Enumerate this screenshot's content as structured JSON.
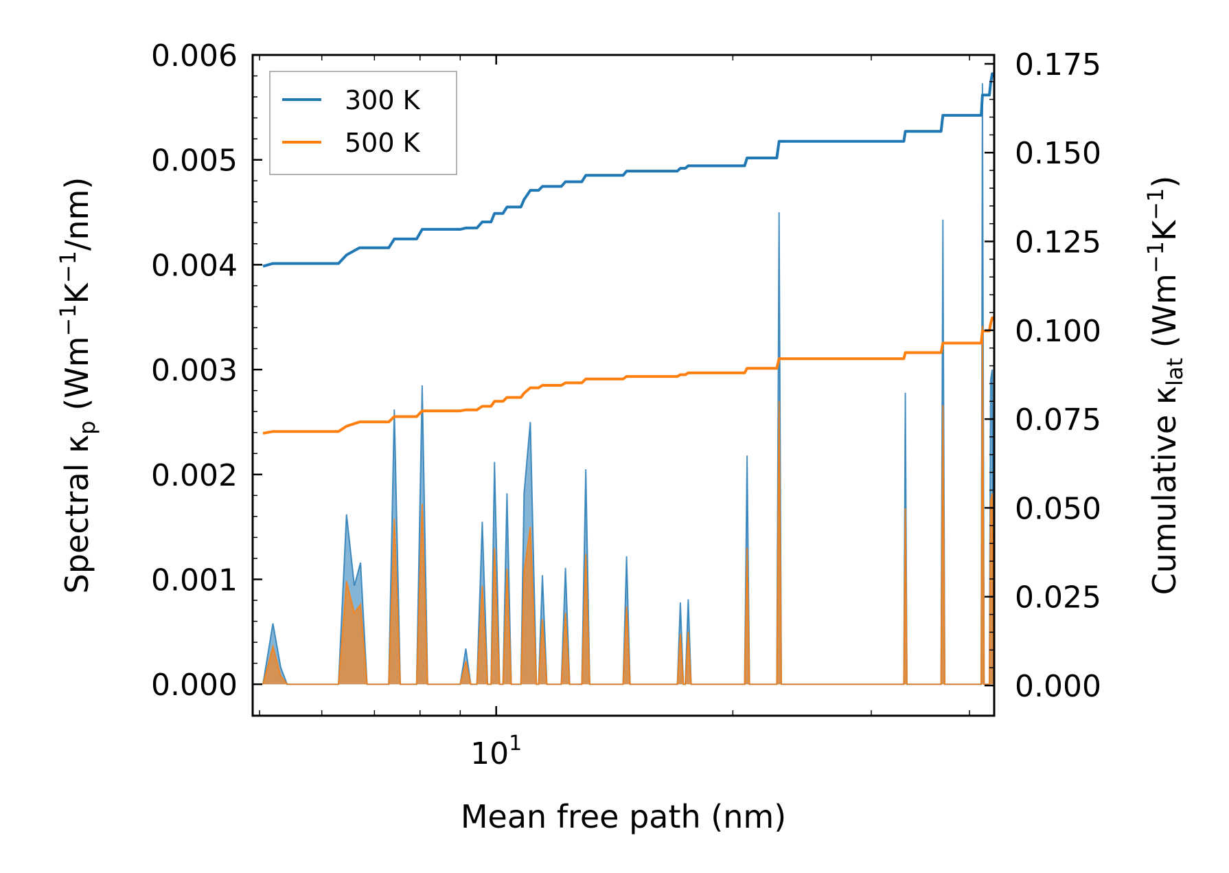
{
  "chart_data": {
    "type": "line+area",
    "title": "",
    "x_scale": "log",
    "xlim": [
      4.9,
      43.0
    ],
    "xlabel": "Mean free path (nm)",
    "x_major_ticks": [
      {
        "value": 10,
        "base": "10",
        "exp": "1"
      }
    ],
    "x_minor_ticks": [
      5,
      6,
      7,
      8,
      9,
      20,
      30,
      40
    ],
    "ylabel_left": {
      "pre": "Spectral κ",
      "sub": "p",
      "mid": " (Wm",
      "sup1": "−1",
      "k": "K",
      "sup2": "−1",
      "post": "/nm)"
    },
    "ylabel_right": {
      "pre": "Cumulative κ",
      "sub": "lat",
      "mid": " (Wm",
      "sup1": "−1",
      "k": "K",
      "sup2": "−1",
      "post": ")"
    },
    "ylim_left": [
      -0.0003,
      0.006
    ],
    "ylim_right": [
      -0.0085,
      0.1775
    ],
    "yticks_left": [
      "0.000",
      "0.001",
      "0.002",
      "0.003",
      "0.004",
      "0.005",
      "0.006"
    ],
    "yticks_right": [
      "0.000",
      "0.025",
      "0.050",
      "0.075",
      "0.100",
      "0.125",
      "0.150",
      "0.175"
    ],
    "legend": {
      "position": "top-left",
      "entries": [
        {
          "label": "300 K",
          "color": "#1f77b4"
        },
        {
          "label": "500 K",
          "color": "#ff7f0e"
        }
      ]
    },
    "colors": {
      "300K": "#1f77b4",
      "500K": "#ff7f0e",
      "fill300": "#1f77b4",
      "fill500": "#ff7f0e"
    },
    "spectral_series": [
      {
        "name": "300 K",
        "points": [
          [
            5.05,
            0
          ],
          [
            5.2,
            0.00058
          ],
          [
            5.32,
            0.00016
          ],
          [
            5.42,
            0
          ],
          [
            6.3,
            0
          ],
          [
            6.45,
            0.00162
          ],
          [
            6.6,
            0.00094
          ],
          [
            6.72,
            0.00116
          ],
          [
            6.85,
            0
          ],
          [
            7.3,
            0
          ],
          [
            7.42,
            0.00262
          ],
          [
            7.55,
            0
          ],
          [
            7.92,
            0
          ],
          [
            8.05,
            0.00285
          ],
          [
            8.18,
            0
          ],
          [
            9.0,
            0
          ],
          [
            9.15,
            0.00034
          ],
          [
            9.28,
            0
          ],
          [
            9.45,
            0
          ],
          [
            9.6,
            0.00155
          ],
          [
            9.75,
            0
          ],
          [
            9.85,
            0
          ],
          [
            9.95,
            0.00212
          ],
          [
            10.1,
            0
          ],
          [
            10.2,
            0
          ],
          [
            10.32,
            0.00182
          ],
          [
            10.45,
            0
          ],
          [
            10.75,
            0
          ],
          [
            10.85,
            0.00182
          ],
          [
            11.05,
            0.0025
          ],
          [
            11.25,
            0
          ],
          [
            11.32,
            0
          ],
          [
            11.45,
            0.00104
          ],
          [
            11.6,
            0
          ],
          [
            12.1,
            0
          ],
          [
            12.25,
            0.00111
          ],
          [
            12.4,
            0
          ],
          [
            12.85,
            0
          ],
          [
            13.0,
            0.00205
          ],
          [
            13.15,
            0
          ],
          [
            14.5,
            0
          ],
          [
            14.65,
            0.00122
          ],
          [
            14.8,
            0
          ],
          [
            17.0,
            0
          ],
          [
            17.15,
            0.00078
          ],
          [
            17.3,
            0
          ],
          [
            17.4,
            0
          ],
          [
            17.55,
            0.00081
          ],
          [
            17.7,
            0
          ],
          [
            20.7,
            0
          ],
          [
            20.85,
            0.00218
          ],
          [
            21.0,
            0
          ],
          [
            22.75,
            0
          ],
          [
            22.9,
            0.0045
          ],
          [
            23.05,
            0
          ],
          [
            33.0,
            0
          ],
          [
            33.15,
            0.00278
          ],
          [
            33.3,
            0
          ],
          [
            36.8,
            0
          ],
          [
            37.0,
            0.00443
          ],
          [
            37.2,
            0
          ],
          [
            41.4,
            0
          ],
          [
            41.55,
            0.00573
          ],
          [
            41.75,
            0
          ],
          [
            42.4,
            0
          ],
          [
            42.55,
            0.0029
          ],
          [
            42.75,
            0.003
          ],
          [
            42.95,
            0
          ]
        ]
      },
      {
        "name": "500 K",
        "points": [
          [
            5.05,
            0
          ],
          [
            5.2,
            0.00036
          ],
          [
            5.32,
            8e-05
          ],
          [
            5.42,
            0
          ],
          [
            6.3,
            0
          ],
          [
            6.45,
            0.00098
          ],
          [
            6.6,
            0.00068
          ],
          [
            6.72,
            0.00076
          ],
          [
            6.85,
            0
          ],
          [
            7.3,
            0
          ],
          [
            7.42,
            0.00158
          ],
          [
            7.55,
            0
          ],
          [
            7.92,
            0
          ],
          [
            8.05,
            0.00172
          ],
          [
            8.18,
            0
          ],
          [
            9.0,
            0
          ],
          [
            9.15,
            0.00022
          ],
          [
            9.28,
            0
          ],
          [
            9.45,
            0
          ],
          [
            9.6,
            0.00094
          ],
          [
            9.75,
            0
          ],
          [
            9.85,
            0
          ],
          [
            9.95,
            0.0013
          ],
          [
            10.1,
            0
          ],
          [
            10.2,
            0
          ],
          [
            10.32,
            0.0011
          ],
          [
            10.45,
            0
          ],
          [
            10.75,
            0
          ],
          [
            10.85,
            0.00108
          ],
          [
            11.05,
            0.0015
          ],
          [
            11.25,
            0
          ],
          [
            11.32,
            0
          ],
          [
            11.45,
            0.00062
          ],
          [
            11.6,
            0
          ],
          [
            12.1,
            0
          ],
          [
            12.25,
            0.00068
          ],
          [
            12.4,
            0
          ],
          [
            12.85,
            0
          ],
          [
            13.0,
            0.00124
          ],
          [
            13.15,
            0
          ],
          [
            14.5,
            0
          ],
          [
            14.65,
            0.00074
          ],
          [
            14.8,
            0
          ],
          [
            17.0,
            0
          ],
          [
            17.15,
            0.00048
          ],
          [
            17.3,
            0
          ],
          [
            17.4,
            0
          ],
          [
            17.55,
            0.0005
          ],
          [
            17.7,
            0
          ],
          [
            20.7,
            0
          ],
          [
            20.85,
            0.0013
          ],
          [
            21.0,
            0
          ],
          [
            22.75,
            0
          ],
          [
            22.9,
            0.0027
          ],
          [
            23.05,
            0
          ],
          [
            33.0,
            0
          ],
          [
            33.15,
            0.00168
          ],
          [
            33.3,
            0
          ],
          [
            36.8,
            0
          ],
          [
            37.0,
            0.00266
          ],
          [
            37.2,
            0
          ],
          [
            41.4,
            0
          ],
          [
            41.55,
            0.00342
          ],
          [
            41.75,
            0
          ],
          [
            42.4,
            0
          ],
          [
            42.55,
            0.00175
          ],
          [
            42.75,
            0.00182
          ],
          [
            42.95,
            0
          ]
        ]
      }
    ],
    "cumulative_series": [
      {
        "name": "300 K",
        "points": [
          [
            5.05,
            0.118
          ],
          [
            5.2,
            0.1188
          ],
          [
            6.3,
            0.1188
          ],
          [
            6.45,
            0.1212
          ],
          [
            6.7,
            0.1232
          ],
          [
            7.3,
            0.1232
          ],
          [
            7.42,
            0.1257
          ],
          [
            7.92,
            0.1257
          ],
          [
            8.05,
            0.1284
          ],
          [
            9.0,
            0.1284
          ],
          [
            9.15,
            0.1288
          ],
          [
            9.45,
            0.1288
          ],
          [
            9.6,
            0.1305
          ],
          [
            9.85,
            0.1305
          ],
          [
            9.95,
            0.1329
          ],
          [
            10.2,
            0.1329
          ],
          [
            10.32,
            0.1347
          ],
          [
            10.75,
            0.1347
          ],
          [
            10.85,
            0.1368
          ],
          [
            11.05,
            0.1394
          ],
          [
            11.32,
            0.1394
          ],
          [
            11.45,
            0.1405
          ],
          [
            12.1,
            0.1405
          ],
          [
            12.25,
            0.1418
          ],
          [
            12.85,
            0.1418
          ],
          [
            13.0,
            0.1436
          ],
          [
            14.5,
            0.1436
          ],
          [
            14.65,
            0.1448
          ],
          [
            17.0,
            0.1448
          ],
          [
            17.15,
            0.1456
          ],
          [
            17.4,
            0.1456
          ],
          [
            17.55,
            0.1463
          ],
          [
            20.7,
            0.1463
          ],
          [
            20.85,
            0.1485
          ],
          [
            22.75,
            0.1485
          ],
          [
            22.9,
            0.1532
          ],
          [
            33.0,
            0.1532
          ],
          [
            33.15,
            0.156
          ],
          [
            36.8,
            0.156
          ],
          [
            37.0,
            0.1605
          ],
          [
            41.4,
            0.1605
          ],
          [
            41.55,
            0.1662
          ],
          [
            42.4,
            0.1662
          ],
          [
            42.55,
            0.1695
          ],
          [
            42.75,
            0.1722
          ],
          [
            42.95,
            0.1722
          ]
        ]
      },
      {
        "name": "500 K",
        "points": [
          [
            5.05,
            0.071
          ],
          [
            5.2,
            0.0715
          ],
          [
            6.3,
            0.0715
          ],
          [
            6.45,
            0.073
          ],
          [
            6.7,
            0.0742
          ],
          [
            7.3,
            0.0742
          ],
          [
            7.42,
            0.0757
          ],
          [
            7.92,
            0.0757
          ],
          [
            8.05,
            0.0773
          ],
          [
            9.0,
            0.0773
          ],
          [
            9.15,
            0.0776
          ],
          [
            9.45,
            0.0776
          ],
          [
            9.6,
            0.0786
          ],
          [
            9.85,
            0.0786
          ],
          [
            9.95,
            0.08
          ],
          [
            10.2,
            0.08
          ],
          [
            10.32,
            0.0811
          ],
          [
            10.75,
            0.0811
          ],
          [
            10.85,
            0.0823
          ],
          [
            11.05,
            0.0838
          ],
          [
            11.32,
            0.0838
          ],
          [
            11.45,
            0.0845
          ],
          [
            12.1,
            0.0845
          ],
          [
            12.25,
            0.0852
          ],
          [
            12.85,
            0.0852
          ],
          [
            13.0,
            0.0863
          ],
          [
            14.5,
            0.0863
          ],
          [
            14.65,
            0.087
          ],
          [
            17.0,
            0.087
          ],
          [
            17.15,
            0.0875
          ],
          [
            17.4,
            0.0875
          ],
          [
            17.55,
            0.088
          ],
          [
            20.7,
            0.088
          ],
          [
            20.85,
            0.0893
          ],
          [
            22.75,
            0.0893
          ],
          [
            22.9,
            0.092
          ],
          [
            33.0,
            0.092
          ],
          [
            33.15,
            0.0937
          ],
          [
            36.8,
            0.0937
          ],
          [
            37.0,
            0.0964
          ],
          [
            41.4,
            0.0964
          ],
          [
            41.55,
            0.0998
          ],
          [
            42.4,
            0.0998
          ],
          [
            42.55,
            0.1018
          ],
          [
            42.75,
            0.1035
          ],
          [
            42.95,
            0.1035
          ]
        ]
      }
    ]
  }
}
